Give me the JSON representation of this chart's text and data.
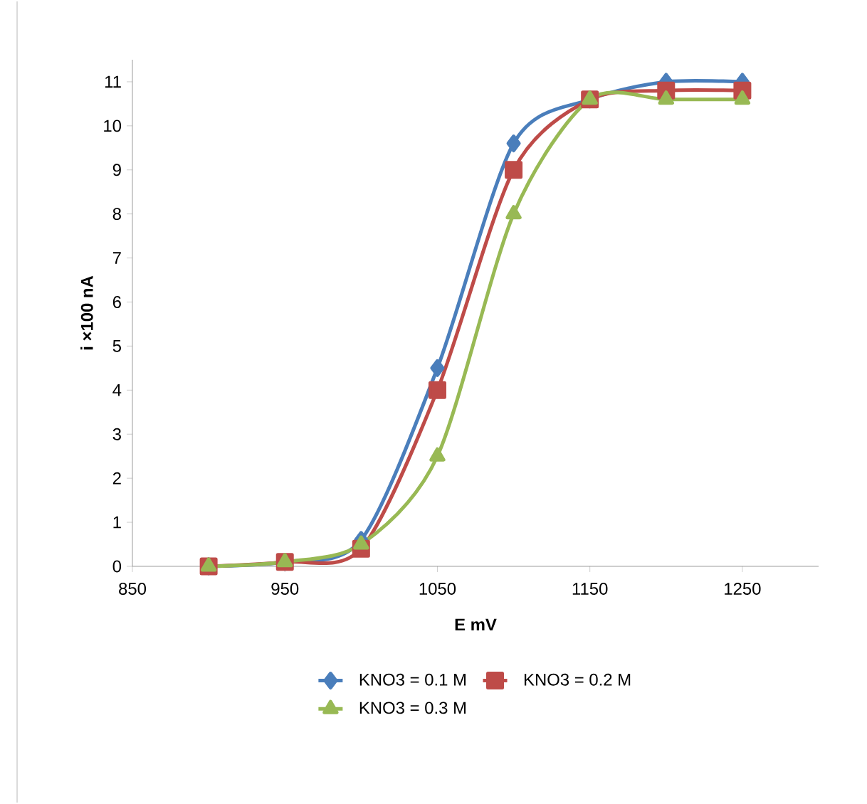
{
  "chart_data": {
    "type": "line",
    "xlabel": "E mV",
    "ylabel": "i ×100 nA",
    "x": [
      900,
      950,
      1000,
      1050,
      1100,
      1150,
      1200,
      1250
    ],
    "series": [
      {
        "name": "KNO3 = 0.1 M",
        "color": "#4a7ebb",
        "marker": "diamond",
        "values": [
          0,
          0.1,
          0.6,
          4.5,
          9.6,
          10.6,
          11,
          11
        ]
      },
      {
        "name": "KNO3 = 0.2 M",
        "color": "#be4b48",
        "marker": "square",
        "values": [
          0,
          0.1,
          0.4,
          4,
          9,
          10.6,
          10.8,
          10.8
        ]
      },
      {
        "name": "KNO3 = 0.3 M",
        "color": "#98b954",
        "marker": "triangle",
        "values": [
          0,
          0.1,
          0.5,
          2.5,
          8,
          10.6,
          10.6,
          10.6
        ]
      }
    ],
    "xlim": [
      850,
      1300
    ],
    "xticks": [
      850,
      950,
      1050,
      1150,
      1250
    ],
    "ylim": [
      0,
      11.5
    ],
    "yticks": [
      0,
      1,
      2,
      3,
      4,
      5,
      6,
      7,
      8,
      9,
      10,
      11
    ],
    "grid": false,
    "legend": "bottom",
    "line_style": "solid"
  }
}
